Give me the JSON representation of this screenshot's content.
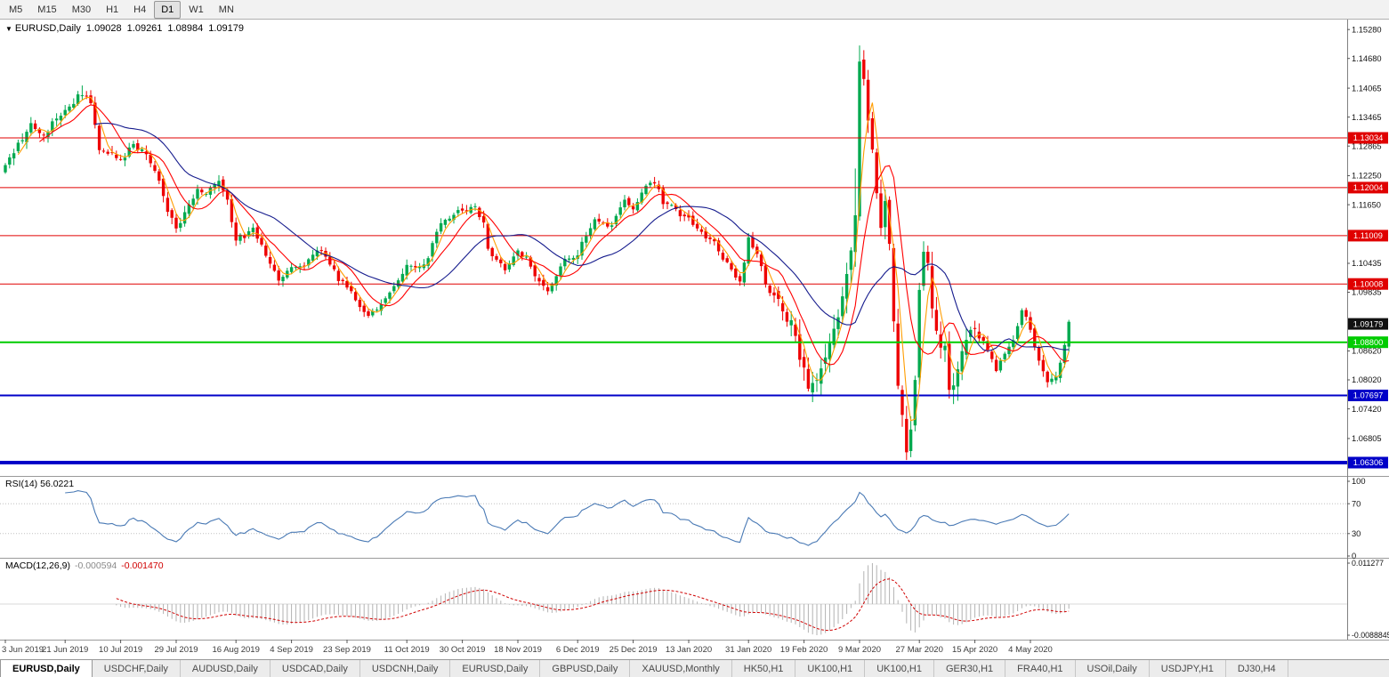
{
  "toolbar": {
    "timeframes": [
      "M5",
      "M15",
      "M30",
      "H1",
      "H4",
      "D1",
      "W1",
      "MN"
    ],
    "active": "D1"
  },
  "header": {
    "dropdown_icon": "▼",
    "symbol": "EURUSD,Daily",
    "open": "1.09028",
    "high": "1.09261",
    "low": "1.08984",
    "close": "1.09179"
  },
  "colors": {
    "up": "#00a94f",
    "down": "#ee0000",
    "ma_fast": "#ff9d00",
    "ma_mid": "#ff0000",
    "ma_slow": "#151b8d",
    "rsi": "#4a7ab5",
    "macd_hist": "#b2b2b2",
    "macd_signal": "#d00000",
    "level_red": "#e00000",
    "level_green": "#00cc00",
    "level_blue": "#0000c8",
    "axis_text": "#111111",
    "date_text": "#3a3a3a"
  },
  "price_axis": {
    "ticks": [
      "1.15280",
      "1.14680",
      "1.14065",
      "1.13465",
      "1.12865",
      "1.12250",
      "1.11650",
      "1.10435",
      "1.09835",
      "1.08620",
      "1.08020",
      "1.07420",
      "1.06805"
    ]
  },
  "levels": [
    {
      "label": "1.13034",
      "price": 1.13034,
      "color": "#e00000",
      "thickness": 1
    },
    {
      "label": "1.12004",
      "price": 1.12004,
      "color": "#e00000",
      "thickness": 1
    },
    {
      "label": "1.11009",
      "price": 1.11009,
      "color": "#e00000",
      "thickness": 1
    },
    {
      "label": "1.10008",
      "price": 1.10008,
      "color": "#e00000",
      "thickness": 1
    },
    {
      "label": "1.09179",
      "price": 1.09179,
      "color": "#111111",
      "thickness": 0
    },
    {
      "label": "1.08800",
      "price": 1.088,
      "color": "#00cc00",
      "thickness": 2
    },
    {
      "label": "1.07697",
      "price": 1.07697,
      "color": "#0000c8",
      "thickness": 2
    },
    {
      "label": "1.06306",
      "price": 1.06306,
      "color": "#0000c8",
      "thickness": 4
    }
  ],
  "rsi_panel": {
    "title": "RSI(14)",
    "value": "56.0221",
    "ticks": [
      {
        "label": "100",
        "v": 100
      },
      {
        "label": "70",
        "v": 70
      },
      {
        "label": "30",
        "v": 30
      },
      {
        "label": "0",
        "v": 0
      }
    ],
    "guides": [
      70,
      30
    ]
  },
  "macd_panel": {
    "title": "MACD(12,26,9)",
    "main_value": "-0.000594",
    "signal_value": "-0.001470",
    "tick_top": "0.011277",
    "tick_bottom": "-0.0088845"
  },
  "date_axis": {
    "labels": [
      "3 Jun 2019",
      "21 Jun 2019",
      "10 Jul 2019",
      "29 Jul 2019",
      "16 Aug 2019",
      "4 Sep 2019",
      "23 Sep 2019",
      "11 Oct 2019",
      "30 Oct 2019",
      "18 Nov 2019",
      "6 Dec 2019",
      "25 Dec 2019",
      "13 Jan 2020",
      "31 Jan 2020",
      "19 Feb 2020",
      "9 Mar 2020",
      "27 Mar 2020",
      "15 Apr 2020",
      "4 May 2020"
    ],
    "indices": [
      0,
      14,
      27,
      40,
      54,
      67,
      80,
      94,
      107,
      120,
      134,
      147,
      160,
      174,
      187,
      200,
      214,
      227,
      240
    ]
  },
  "tabs": {
    "items": [
      "EURUSD,Daily",
      "USDCHF,Daily",
      "AUDUSD,Daily",
      "USDCAD,Daily",
      "USDCNH,Daily",
      "EURUSD,Daily",
      "GBPUSD,Daily",
      "XAUUSD,Monthly",
      "HK50,H1",
      "UK100,H1",
      "UK100,H1",
      "GER30,H1",
      "FRA40,H1",
      "USOil,Daily",
      "USDJPY,H1",
      "DJ30,H4"
    ],
    "active_index": 0
  },
  "chart_data": {
    "type": "candlestick",
    "symbol": "EURUSD",
    "timeframe": "Daily",
    "bars": 250,
    "price_range": {
      "top": 1.15486,
      "bottom": 1.06066
    },
    "close_anchors": [
      [
        0,
        1.124
      ],
      [
        3,
        1.129
      ],
      [
        6,
        1.133
      ],
      [
        9,
        1.131
      ],
      [
        12,
        1.1345
      ],
      [
        15,
        1.137
      ],
      [
        18,
        1.1398
      ],
      [
        20,
        1.137
      ],
      [
        22,
        1.1285
      ],
      [
        25,
        1.1268
      ],
      [
        27,
        1.1252
      ],
      [
        30,
        1.1288
      ],
      [
        33,
        1.127
      ],
      [
        36,
        1.1222
      ],
      [
        38,
        1.1152
      ],
      [
        40,
        1.1118
      ],
      [
        43,
        1.1162
      ],
      [
        45,
        1.1202
      ],
      [
        47,
        1.1188
      ],
      [
        50,
        1.1212
      ],
      [
        52,
        1.1172
      ],
      [
        54,
        1.1092
      ],
      [
        56,
        1.1102
      ],
      [
        58,
        1.1112
      ],
      [
        60,
        1.1082
      ],
      [
        62,
        1.1042
      ],
      [
        64,
        1.1002
      ],
      [
        67,
        1.1036
      ],
      [
        70,
        1.1032
      ],
      [
        72,
        1.1062
      ],
      [
        74,
        1.1072
      ],
      [
        76,
        1.1042
      ],
      [
        78,
        1.1012
      ],
      [
        80,
        1.0992
      ],
      [
        83,
        1.0958
      ],
      [
        85,
        1.0932
      ],
      [
        88,
        1.0962
      ],
      [
        90,
        1.0988
      ],
      [
        92,
        1.1002
      ],
      [
        94,
        1.1042
      ],
      [
        96,
        1.1032
      ],
      [
        98,
        1.1036
      ],
      [
        100,
        1.1082
      ],
      [
        102,
        1.1132
      ],
      [
        105,
        1.1146
      ],
      [
        107,
        1.1152
      ],
      [
        110,
        1.1166
      ],
      [
        112,
        1.1122
      ],
      [
        113,
        1.1072
      ],
      [
        115,
        1.1052
      ],
      [
        117,
        1.1032
      ],
      [
        120,
        1.1072
      ],
      [
        122,
        1.1052
      ],
      [
        124,
        1.1012
      ],
      [
        127,
        1.0982
      ],
      [
        129,
        1.1022
      ],
      [
        131,
        1.1056
      ],
      [
        134,
        1.1062
      ],
      [
        136,
        1.1102
      ],
      [
        138,
        1.1136
      ],
      [
        140,
        1.1122
      ],
      [
        142,
        1.1116
      ],
      [
        145,
        1.1176
      ],
      [
        147,
        1.1152
      ],
      [
        150,
        1.1202
      ],
      [
        152,
        1.1212
      ],
      [
        154,
        1.1172
      ],
      [
        156,
        1.1162
      ],
      [
        158,
        1.1142
      ],
      [
        160,
        1.1136
      ],
      [
        162,
        1.1112
      ],
      [
        165,
        1.1096
      ],
      [
        167,
        1.1072
      ],
      [
        170,
        1.1026
      ],
      [
        172,
        1.1006
      ],
      [
        174,
        1.1092
      ],
      [
        176,
        1.1062
      ],
      [
        178,
        1.1002
      ],
      [
        180,
        1.0962
      ],
      [
        182,
        1.0952
      ],
      [
        184,
        1.0916
      ],
      [
        186,
        1.0842
      ],
      [
        188,
        1.0786
      ],
      [
        190,
        1.0812
      ],
      [
        192,
        1.0852
      ],
      [
        194,
        1.0902
      ],
      [
        196,
        1.0982
      ],
      [
        198,
        1.1062
      ],
      [
        199,
        1.1142
      ],
      [
        200,
        1.1452
      ],
      [
        201,
        1.1412
      ],
      [
        202,
        1.1332
      ],
      [
        203,
        1.1282
      ],
      [
        204,
        1.1182
      ],
      [
        205,
        1.1112
      ],
      [
        206,
        1.1182
      ],
      [
        207,
        1.1072
      ],
      [
        208,
        1.0922
      ],
      [
        209,
        1.0782
      ],
      [
        210,
        1.0732
      ],
      [
        211,
        1.0662
      ],
      [
        212,
        1.0692
      ],
      [
        213,
        1.0802
      ],
      [
        214,
        1.1002
      ],
      [
        215,
        1.1082
      ],
      [
        216,
        1.1032
      ],
      [
        217,
        1.0962
      ],
      [
        218,
        1.0902
      ],
      [
        219,
        1.0872
      ],
      [
        220,
        1.0862
      ],
      [
        221,
        1.0792
      ],
      [
        222,
        1.0802
      ],
      [
        224,
        1.0872
      ],
      [
        226,
        1.0902
      ],
      [
        227,
        1.0912
      ],
      [
        229,
        1.0882
      ],
      [
        231,
        1.0842
      ],
      [
        232,
        1.0822
      ],
      [
        234,
        1.0852
      ],
      [
        236,
        1.0882
      ],
      [
        238,
        1.0952
      ],
      [
        240,
        1.0902
      ],
      [
        242,
        1.0842
      ],
      [
        244,
        1.0802
      ],
      [
        246,
        1.0812
      ],
      [
        248,
        1.0872
      ],
      [
        249,
        1.0918
      ]
    ],
    "wick_overrides": {
      "18": {
        "high": 1.1412
      },
      "188": {
        "low": 1.0778
      },
      "199": {
        "high": 1.124
      },
      "200": {
        "high": 1.1495
      },
      "211": {
        "low": 1.0636
      }
    },
    "volatility_zones": [
      {
        "from": 0,
        "to": 53,
        "mult": 1.1
      },
      {
        "from": 180,
        "to": 228,
        "mult": 2.4
      }
    ],
    "mas": [
      {
        "period": 4,
        "color_key": "ma_fast"
      },
      {
        "period": 9,
        "color_key": "ma_mid"
      },
      {
        "period": 22,
        "color_key": "ma_slow"
      }
    ],
    "indicators": {
      "rsi_period": 14,
      "macd": [
        12,
        26,
        9
      ]
    }
  }
}
